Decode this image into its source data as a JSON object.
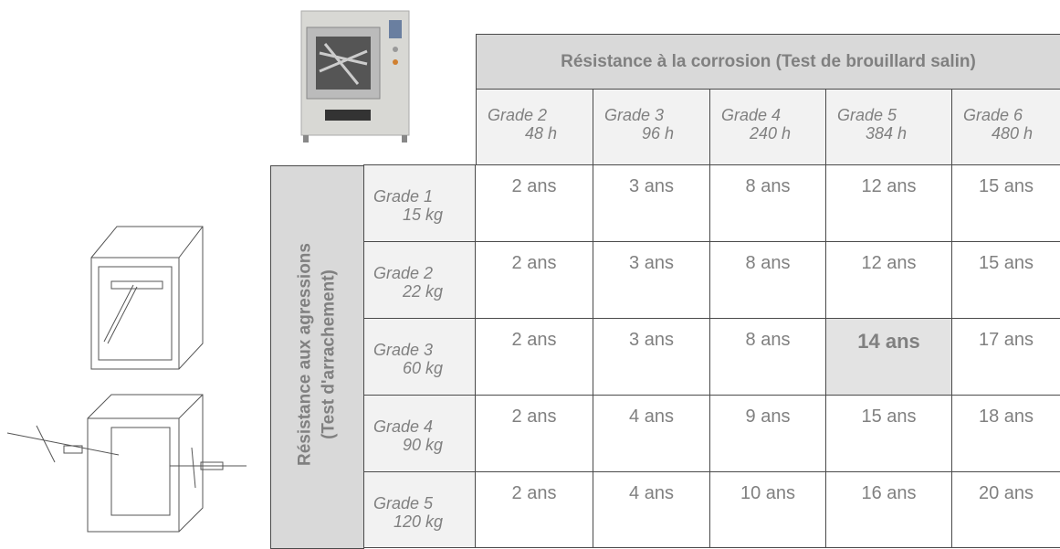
{
  "table": {
    "title": "Résistance à la corrosion (Test de brouillard salin)",
    "columns": [
      {
        "grade": "Grade 2",
        "time": "48 h"
      },
      {
        "grade": "Grade 3",
        "time": "96 h"
      },
      {
        "grade": "Grade 4",
        "time": "240 h"
      },
      {
        "grade": "Grade 5",
        "time": "384 h"
      },
      {
        "grade": "Grade 6",
        "time": "480 h"
      }
    ],
    "row_header": [
      "Résistance aux agressions",
      "(Test d'arrachement)"
    ],
    "rows": [
      {
        "grade": "Grade 1",
        "weight": "15 kg",
        "values": [
          "2 ans",
          "3 ans",
          "8 ans",
          "12 ans",
          "15 ans"
        ]
      },
      {
        "grade": "Grade 2",
        "weight": "22 kg",
        "values": [
          "2 ans",
          "3 ans",
          "8 ans",
          "12 ans",
          "15 ans"
        ]
      },
      {
        "grade": "Grade 3",
        "weight": "60 kg",
        "values": [
          "2 ans",
          "3 ans",
          "8 ans",
          "14 ans",
          "17 ans"
        ]
      },
      {
        "grade": "Grade 4",
        "weight": "90 kg",
        "values": [
          "2 ans",
          "4 ans",
          "9 ans",
          "15 ans",
          "18 ans"
        ]
      },
      {
        "grade": "Grade 5",
        "weight": "120 kg",
        "values": [
          "2 ans",
          "4 ans",
          "10 ans",
          "16 ans",
          "20 ans"
        ]
      }
    ],
    "highlighted_cell": {
      "row": 2,
      "column": 3
    }
  }
}
